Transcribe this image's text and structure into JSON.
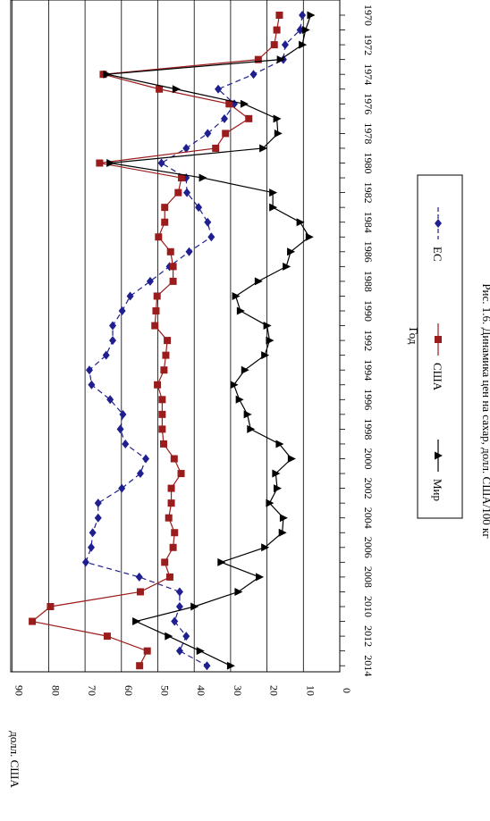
{
  "chart_data": {
    "type": "line",
    "orientation": "rotated-90-clockwise",
    "x": [
      "1970",
      "1971",
      "1972",
      "1973",
      "1974",
      "1975",
      "1976",
      "1977",
      "1978",
      "1979",
      "1980",
      "1981",
      "1982",
      "1983",
      "1984",
      "1985",
      "1986",
      "1987",
      "1988",
      "1989",
      "1990",
      "1991",
      "1992",
      "1993",
      "1994",
      "1995",
      "1996",
      "1997",
      "1998",
      "1999",
      "2000",
      "2001",
      "2002",
      "2003",
      "2004",
      "2005",
      "2006",
      "2007",
      "2008",
      "2009",
      "2010",
      "2011",
      "2012",
      "2013",
      "2014"
    ],
    "x_tick_labels": [
      "1970",
      "1972",
      "1974",
      "1976",
      "1978",
      "1980",
      "1982",
      "1984",
      "1986",
      "1988",
      "1990",
      "1992",
      "1994",
      "1996",
      "1998",
      "2000",
      "2002",
      "2004",
      "2006",
      "2008",
      "2010",
      "2012",
      "2014"
    ],
    "xlabel": "Год",
    "ylabel": "долл. США",
    "ylim": [
      0,
      90
    ],
    "y_ticks": [
      0,
      10,
      20,
      30,
      40,
      50,
      60,
      70,
      80,
      90
    ],
    "grid": true,
    "legend_position": "right",
    "series": [
      {
        "name": "ЕС",
        "color": "#1f1f8f",
        "style": "dashed",
        "marker": "diamond",
        "values": [
          10.3,
          10.9,
          15.0,
          15.5,
          23.7,
          33.4,
          29.0,
          31.7,
          36.3,
          42.2,
          49.0,
          42.2,
          42.0,
          38.8,
          36.3,
          35.3,
          41.4,
          46.8,
          52.1,
          57.6,
          59.8,
          62.4,
          62.4,
          64.2,
          68.8,
          68.2,
          63.1,
          59.6,
          60.3,
          58.9,
          53.3,
          54.8,
          59.9,
          66.4,
          66.4,
          67.9,
          68.3,
          69.8,
          55.1,
          44.0,
          44.0,
          45.4,
          42.2,
          44.0,
          36.5
        ]
      },
      {
        "name": "США",
        "color": "#9b1c1c",
        "style": "solid",
        "marker": "square",
        "values": [
          16.6,
          17.3,
          18.0,
          22.4,
          65.0,
          49.6,
          30.4,
          25.0,
          31.4,
          34.1,
          66.0,
          43.5,
          44.4,
          48.1,
          48.1,
          49.8,
          46.5,
          45.8,
          45.8,
          50.2,
          50.5,
          50.8,
          47.4,
          47.8,
          48.3,
          50.1,
          48.8,
          48.8,
          48.8,
          48.4,
          45.5,
          43.6,
          46.3,
          46.3,
          47.0,
          45.4,
          45.8,
          48.1,
          46.7,
          54.8,
          79.5,
          84.5,
          63.9,
          52.9,
          55.0
        ]
      },
      {
        "name": "Мир",
        "color": "#000000",
        "style": "solid",
        "marker": "triangle",
        "values": [
          8.0,
          9.4,
          10.3,
          16.3,
          64.0,
          45.0,
          26.3,
          17.3,
          17.0,
          21.1,
          63.1,
          37.7,
          18.4,
          18.4,
          10.9,
          8.4,
          13.5,
          14.7,
          22.4,
          28.6,
          27.3,
          20.0,
          19.3,
          20.6,
          26.1,
          29.1,
          27.6,
          25.4,
          24.5,
          16.6,
          13.3,
          17.6,
          17.2,
          19.3,
          15.5,
          15.8,
          20.6,
          32.6,
          22.1,
          27.9,
          40.0,
          56.0,
          47.1,
          38.4,
          30.0
        ]
      }
    ]
  },
  "caption": "Рис. 1.6. Динамика цен на сахар, долл. США/100 кг"
}
